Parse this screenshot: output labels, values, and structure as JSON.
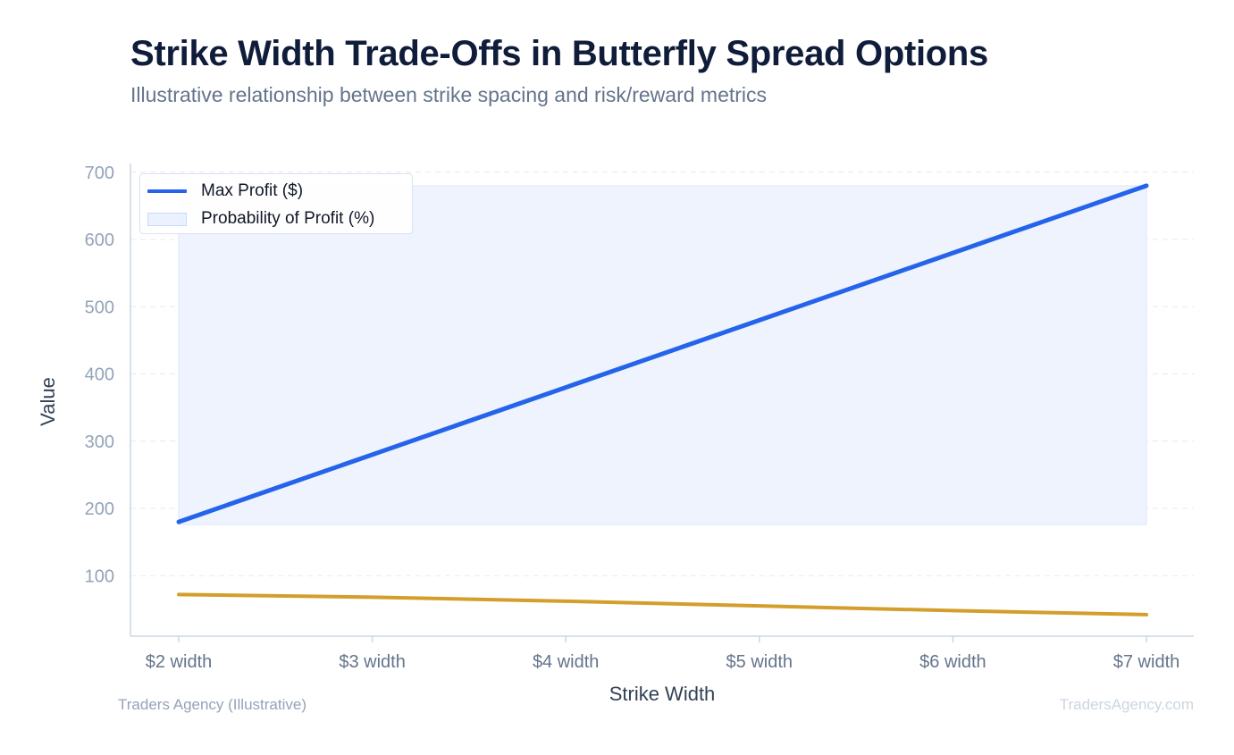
{
  "header": {
    "title": "Strike Width Trade-Offs in Butterfly Spread Options",
    "subtitle": "Illustrative relationship between strike spacing and risk/reward metrics"
  },
  "footer": {
    "source": "Traders Agency (Illustrative)",
    "site": "TradersAgency.com"
  },
  "colors": {
    "max_profit": "#2563eb",
    "area_fill": "#eef3fd",
    "second_line": "#d39e2c",
    "grid": "#e5e9f0",
    "axis": "#cbd5e1",
    "tick_text": "#94a3b8",
    "category_text": "#64748b",
    "axis_title": "#334155"
  },
  "chart_data": {
    "type": "line",
    "xlabel": "Strike Width",
    "ylabel": "Value",
    "categories": [
      "$2 width",
      "$3 width",
      "$4 width",
      "$5 width",
      "$6 width",
      "$7 width"
    ],
    "yticks": [
      100,
      200,
      300,
      400,
      500,
      600,
      700
    ],
    "ylim": [
      10,
      713
    ],
    "grid": true,
    "legend_position": "top-left",
    "series": [
      {
        "name": "Max Profit ($)",
        "style": "line",
        "color": "#2563eb",
        "values": [
          180,
          280,
          380,
          480,
          580,
          680
        ]
      },
      {
        "name": "Probability of Profit (%)",
        "style": "area",
        "color": "#eef3fd",
        "values": [
          680,
          680,
          680,
          680,
          680,
          680
        ],
        "baseline": 176
      },
      {
        "name": "",
        "style": "line",
        "color": "#d39e2c",
        "values": [
          72,
          68,
          62,
          55,
          48,
          42
        ]
      }
    ]
  }
}
